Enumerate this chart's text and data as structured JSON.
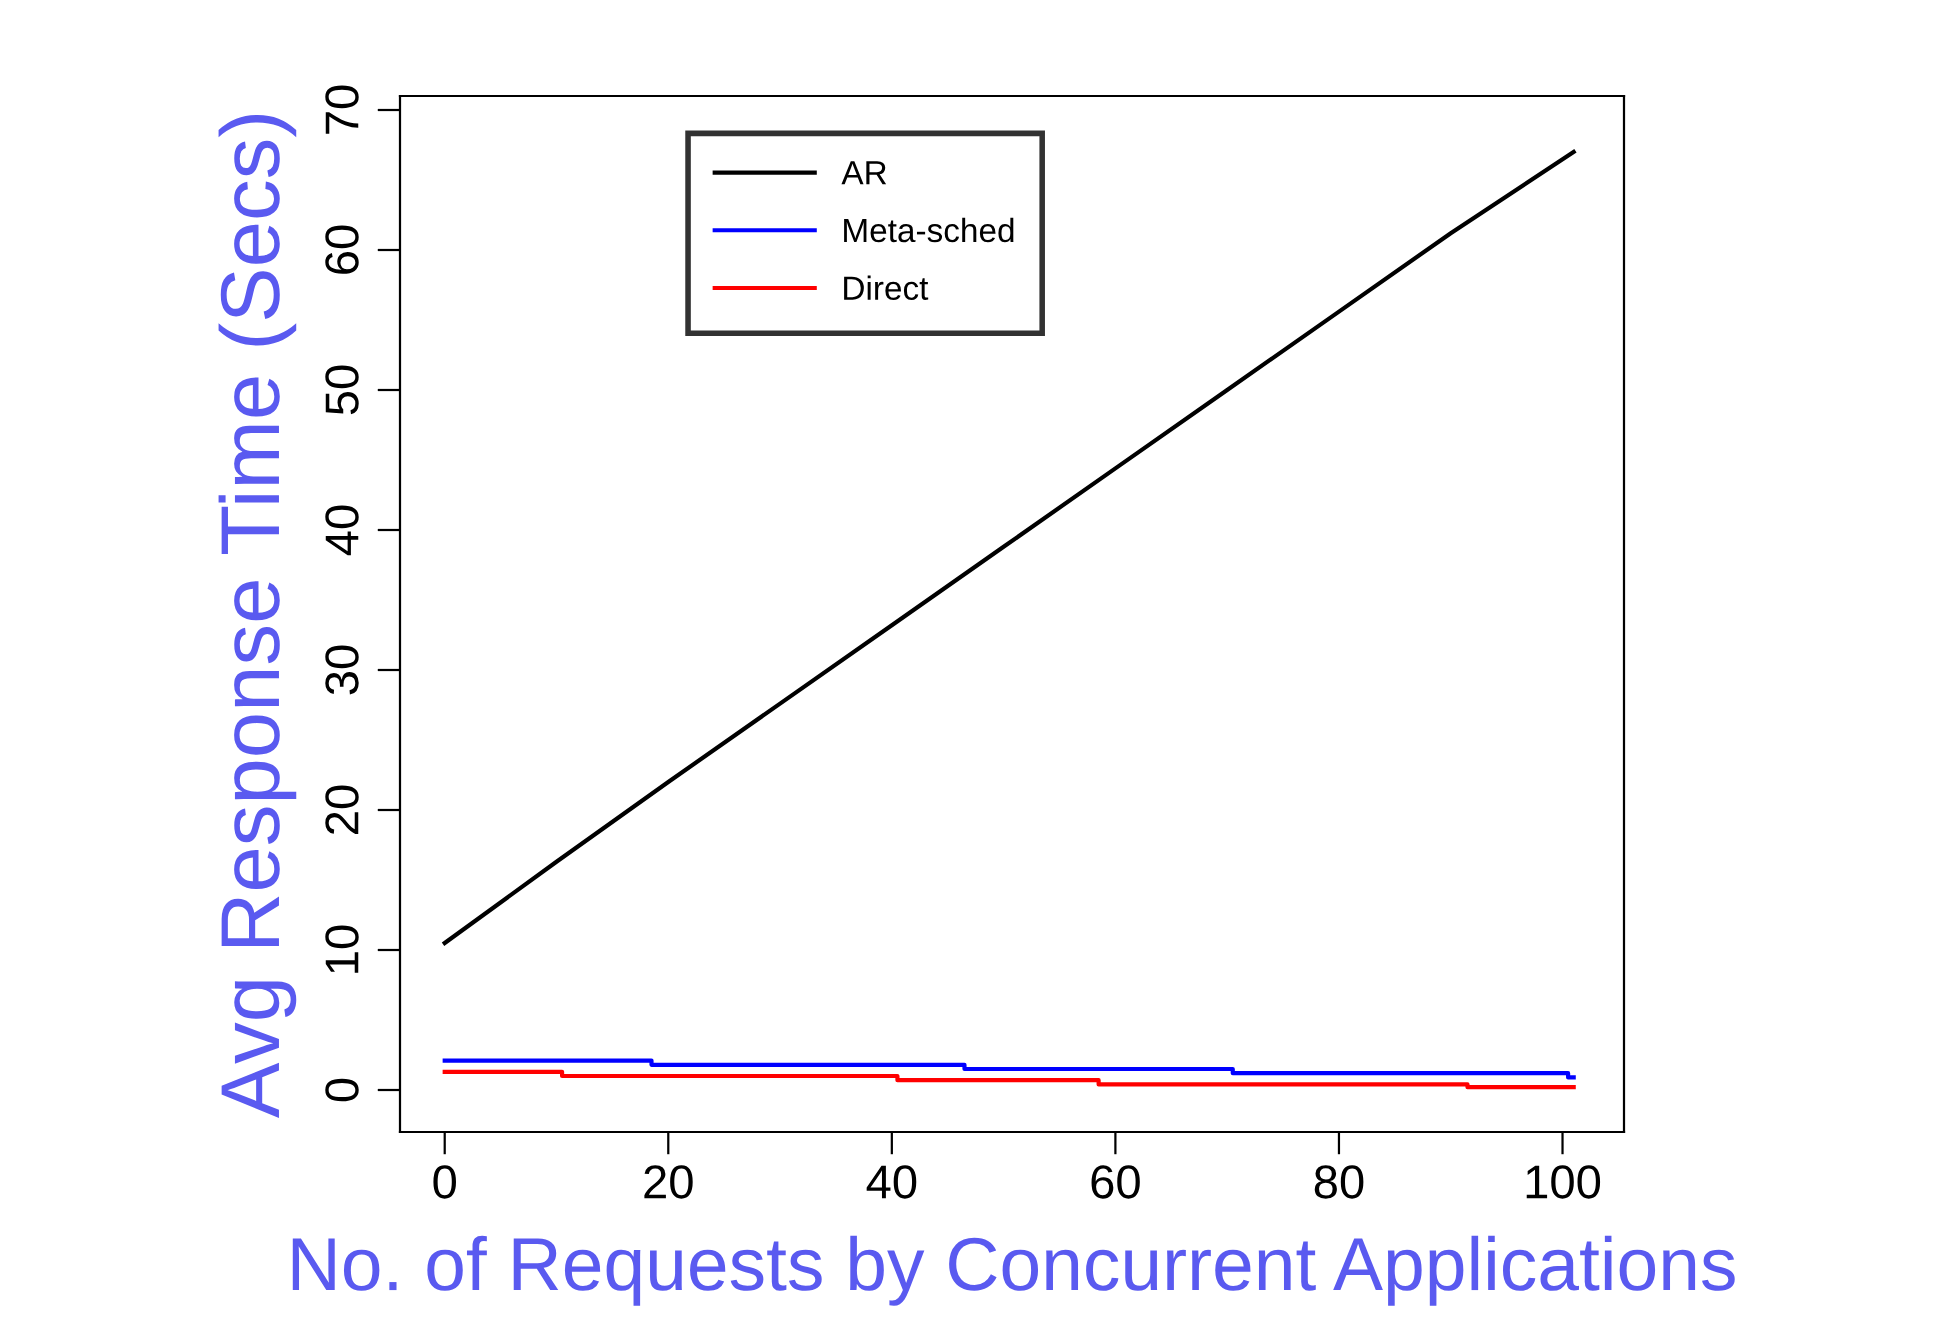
{
  "chart_data": {
    "type": "line",
    "xlabel": "No. of Requests by Concurrent Applications",
    "ylabel": "Avg Response Time (Secs)",
    "xlim": [
      -4,
      105.5
    ],
    "ylim": [
      -3,
      71
    ],
    "xticks": [
      0,
      20,
      40,
      60,
      80,
      100
    ],
    "yticks": [
      0,
      10,
      20,
      30,
      40,
      50,
      60,
      70
    ],
    "grid": false,
    "legend": "top",
    "marker": "none",
    "line_style": "solid",
    "series": [
      {
        "name": "AR",
        "color": "#000000",
        "x": [
          0,
          10,
          20,
          30,
          40,
          50,
          60,
          70,
          80,
          90,
          101
        ],
        "values": [
          10.5,
          16.3,
          22,
          27.6,
          33.2,
          38.8,
          44.4,
          50,
          55.6,
          61.2,
          67
        ]
      },
      {
        "name": "Meta-sched",
        "color": "#0000ff",
        "type": "step",
        "x": [
          0,
          18.5,
          46.5,
          70.5,
          100.5,
          101
        ],
        "values": [
          2.1,
          1.8,
          1.5,
          1.2,
          0.9,
          0.9
        ]
      },
      {
        "name": "Direct",
        "color": "#ff0000",
        "type": "step",
        "x": [
          0,
          10.5,
          40.5,
          58.5,
          91.5,
          101
        ],
        "values": [
          1.3,
          1.0,
          0.7,
          0.4,
          0.2,
          0.2
        ]
      }
    ]
  }
}
